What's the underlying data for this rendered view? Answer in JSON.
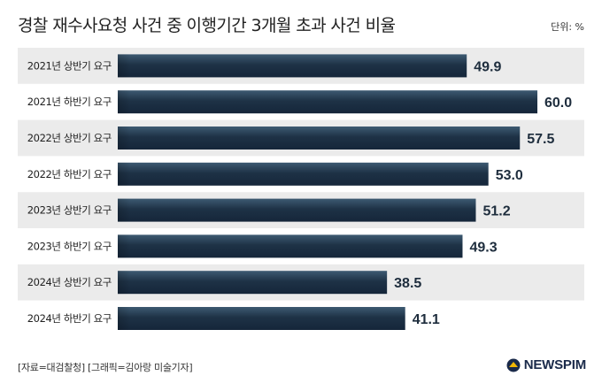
{
  "title": "경찰 재수사요청 사건 중 이행기간 3개월 초과 사건 비율",
  "unit": "단위: %",
  "source": "[자료=대검찰청] [그래픽=김아랑 미술기자]",
  "logo": "NEWSPIM",
  "colors": {
    "bar": "#1e3246",
    "bar_light": "#3d5a72",
    "stripe": "#ebebeb",
    "label": "#222222"
  },
  "chart_data": {
    "type": "bar",
    "orientation": "horizontal",
    "categories": [
      "2021년 상반기 요구",
      "2021년 하반기 요구",
      "2022년 상반기 요구",
      "2022년 하반기 요구",
      "2023년 상반기 요구",
      "2023년 하반기 요구",
      "2024년 상반기 요구",
      "2024년 하반기 요구"
    ],
    "values": [
      49.9,
      60.0,
      57.5,
      53.0,
      51.2,
      49.3,
      38.5,
      41.1
    ],
    "value_labels": [
      "49.9",
      "60.0",
      "57.5",
      "53.0",
      "51.2",
      "49.3",
      "38.5",
      "41.1"
    ],
    "xlim": [
      0,
      60
    ],
    "grid": false,
    "legend": "none"
  }
}
